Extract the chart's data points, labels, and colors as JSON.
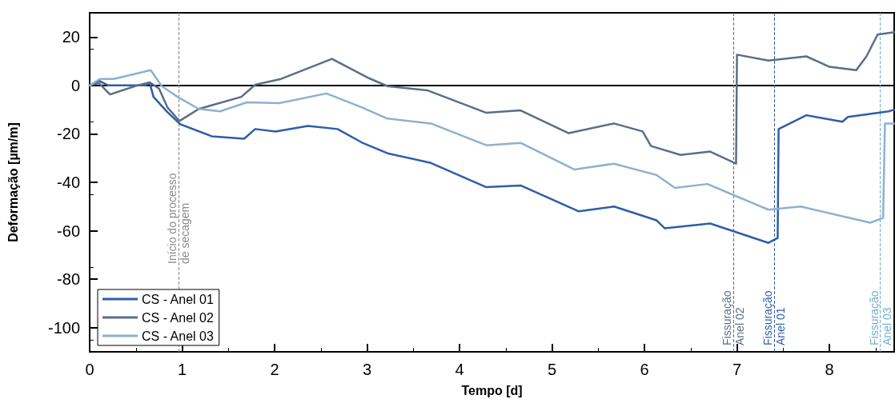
{
  "chart_data": {
    "type": "line",
    "xlabel": "Tempo [d]",
    "ylabel": "Deformação [µm/m]",
    "xlim": [
      0,
      8.7
    ],
    "xticks": [
      0,
      1,
      2,
      3,
      4,
      5,
      6,
      7,
      8
    ],
    "ylim": [
      -110,
      30
    ],
    "yticks": [
      -100,
      -80,
      -60,
      -40,
      -20,
      0,
      20
    ],
    "grid": false,
    "legend": "bottom left",
    "marker": "none",
    "line_style": "solid",
    "series": [
      {
        "name": "CS - Anel 01",
        "color": "#2e5ea8",
        "x": [
          0,
          0.1,
          0.2,
          0.6,
          0.65,
          0.69,
          0.84,
          0.98,
          1.32,
          1.67,
          1.79,
          2.01,
          2.36,
          2.68,
          2.94,
          3.22,
          3.69,
          4.29,
          4.66,
          5.29,
          5.67,
          6.13,
          6.22,
          6.71,
          7.34,
          7.44,
          7.45,
          7.75,
          8.14,
          8.2,
          8.64,
          8.7
        ],
        "values": [
          0,
          2,
          0,
          0,
          1,
          -4.7,
          -11,
          -16,
          -21,
          -22,
          -18,
          -19,
          -16.7,
          -18,
          -23.5,
          -28,
          -32,
          -42,
          -41.3,
          -52,
          -50,
          -55.7,
          -59,
          -57,
          -65,
          -63,
          -18,
          -12.3,
          -15,
          -13,
          -10.7,
          -10
        ]
      },
      {
        "name": "CS - Anel 02",
        "color": "#5a6e88",
        "x": [
          0,
          0.1,
          0.22,
          0.49,
          0.65,
          0.75,
          0.84,
          0.97,
          1.18,
          1.64,
          1.79,
          2.07,
          2.62,
          3.02,
          3.22,
          3.65,
          4.29,
          4.66,
          5.18,
          5.67,
          5.98,
          6.07,
          6.39,
          6.71,
          6.99,
          7.0,
          7.34,
          7.75,
          8.0,
          8.29,
          8.4,
          8.52,
          8.7
        ],
        "values": [
          0,
          1,
          -3.7,
          -0.3,
          1.3,
          -1.3,
          -9,
          -14.7,
          -9.7,
          -4.7,
          0.3,
          2.7,
          11,
          3,
          -0.3,
          -2,
          -11.3,
          -10.3,
          -19.7,
          -15.7,
          -19,
          -25,
          -28.7,
          -27.3,
          -32.3,
          12.7,
          10.3,
          12,
          7.7,
          6.3,
          12,
          21,
          22
        ]
      },
      {
        "name": "CS - Anel 03",
        "color": "#8fb0d0",
        "x": [
          0,
          0.11,
          0.26,
          0.66,
          0.78,
          0.95,
          1.18,
          1.41,
          1.7,
          2.05,
          2.56,
          2.94,
          3.22,
          3.69,
          4.29,
          4.66,
          5.24,
          5.67,
          6.13,
          6.33,
          6.68,
          6.99,
          7.34,
          7.69,
          8.44,
          8.58,
          8.6,
          8.7
        ],
        "values": [
          0,
          2.7,
          2.7,
          6.3,
          -0.3,
          -4.7,
          -9.7,
          -10.7,
          -7,
          -7.3,
          -3.3,
          -9,
          -13.7,
          -15.7,
          -24.7,
          -23.7,
          -34.7,
          -32.3,
          -37,
          -42.3,
          -40.7,
          -45.7,
          -51.3,
          -50,
          -56.7,
          -54.7,
          -15.7,
          -15.7
        ]
      }
    ],
    "ref_lines": [
      {
        "axis": "y",
        "value": 0,
        "label": null,
        "color": "#000000",
        "line_style": "solid"
      },
      {
        "axis": "x",
        "value": 0.96,
        "label": "Início do processo\nde secagem",
        "color": "#888888",
        "line_style": "dashed"
      },
      {
        "axis": "x",
        "value": 6.96,
        "label": "Fissuração\nAnel 02",
        "color": "#5a6e88",
        "line_style": "dashed"
      },
      {
        "axis": "x",
        "value": 7.4,
        "label": "Fissuração\nAnel 01",
        "color": "#2e5ea8",
        "line_style": "dashed"
      },
      {
        "axis": "x",
        "value": 8.55,
        "label": "Fissuração\nAnel 03",
        "color": "#6fb0cc",
        "line_style": "dashed"
      }
    ]
  }
}
